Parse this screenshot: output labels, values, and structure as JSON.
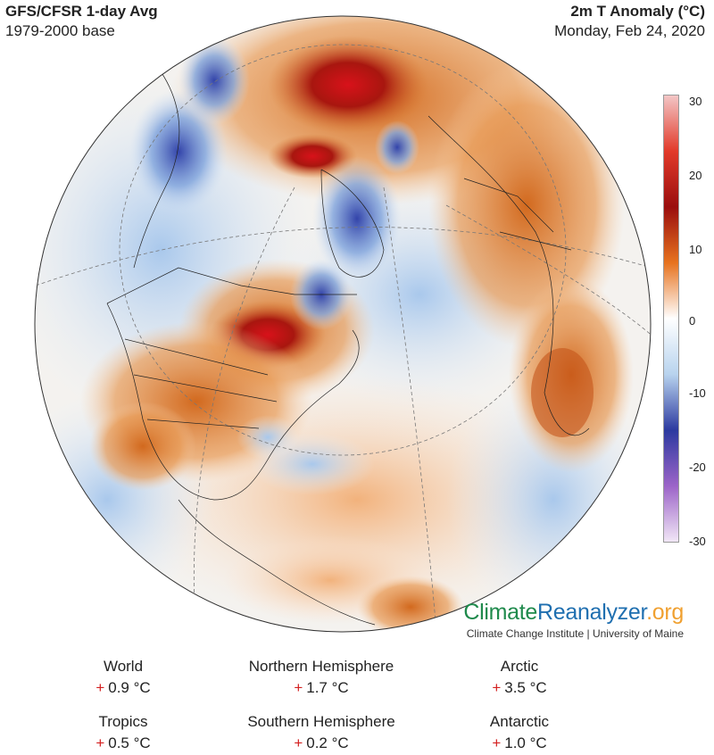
{
  "header": {
    "title": "GFS/CFSR 1-day Avg",
    "base": "1979-2000 base",
    "variable": "2m T Anomaly (°C)",
    "date": "Monday, Feb 24, 2020"
  },
  "colorbar": {
    "ticks": [
      "30",
      "20",
      "10",
      "0",
      "-10",
      "-20",
      "-30"
    ],
    "colors": [
      "#f3c6c6",
      "#e23a2a",
      "#9a0e0e",
      "#e7731f",
      "#ffffff",
      "#b8d3ee",
      "#2c3aa0",
      "#9c64c8",
      "#f1e6f6"
    ]
  },
  "brand": {
    "name_a": "Climate",
    "name_b": "Reanalyzer",
    "name_c": ".org",
    "subtitle": "Climate Change Institute | University of Maine"
  },
  "stats": [
    {
      "label": "World",
      "sign": "+",
      "value": "0.9 °C"
    },
    {
      "label": "Northern Hemisphere",
      "sign": "+",
      "value": "1.7 °C"
    },
    {
      "label": "Arctic",
      "sign": "+",
      "value": "3.5 °C"
    },
    {
      "label": "Tropics",
      "sign": "+",
      "value": "0.5 °C"
    },
    {
      "label": "Southern Hemisphere",
      "sign": "+",
      "value": "0.2 °C"
    },
    {
      "label": "Antarctic",
      "sign": "+",
      "value": "1.0 °C"
    }
  ]
}
